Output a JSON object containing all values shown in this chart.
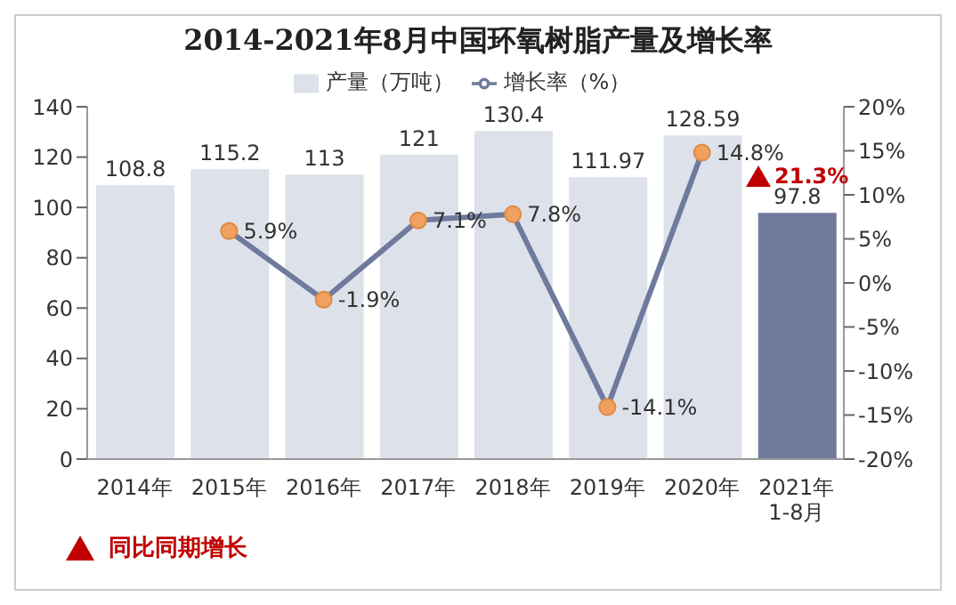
{
  "chart_data": {
    "type": "bar",
    "title": "2014-2021年8月中国环氧树脂产量及增长率",
    "categories": [
      "2014年",
      "2015年",
      "2016年",
      "2017年",
      "2018年",
      "2019年",
      "2020年",
      "2021年\n1-8月"
    ],
    "series": [
      {
        "name": "产量（万吨）",
        "color": "#dde1ea",
        "colors": [
          "#dde1ea",
          "#dde1ea",
          "#dde1ea",
          "#dde1ea",
          "#dde1ea",
          "#dde1ea",
          "#dde1ea",
          "#6f7a9c"
        ],
        "values": [
          108.8,
          115.2,
          113,
          121,
          130.4,
          111.97,
          128.59,
          97.8
        ]
      },
      {
        "name": "增长率（%）",
        "type": "line",
        "axis": "y2",
        "color": "#6f7a9c",
        "values": [
          null,
          5.9,
          -1.9,
          7.1,
          7.8,
          -14.1,
          14.8,
          null
        ],
        "value_labels": [
          null,
          "5.9%",
          "-1.9%",
          "7.1%",
          "7.8%",
          "-14.1%",
          "14.8%",
          null
        ]
      }
    ],
    "ylim": [
      0,
      140
    ],
    "yticks": [
      0,
      20,
      40,
      60,
      80,
      100,
      120,
      140
    ],
    "y2lim": [
      -20,
      20
    ],
    "y2ticks": [
      {
        "value": -20,
        "label": "-20%"
      },
      {
        "value": -15,
        "label": "-15%"
      },
      {
        "value": -10,
        "label": "-10%"
      },
      {
        "value": -5,
        "label": "-5%"
      },
      {
        "value": 0,
        "label": "0%"
      },
      {
        "value": 5,
        "label": "5%"
      },
      {
        "value": 10,
        "label": "10%"
      },
      {
        "value": 15,
        "label": "15%"
      },
      {
        "value": 20,
        "label": "20%"
      }
    ],
    "marker": "circle",
    "data_labels": true,
    "legend": "top",
    "grid": false,
    "annotations": [
      "同比同期增长",
      "21.3%"
    ]
  }
}
